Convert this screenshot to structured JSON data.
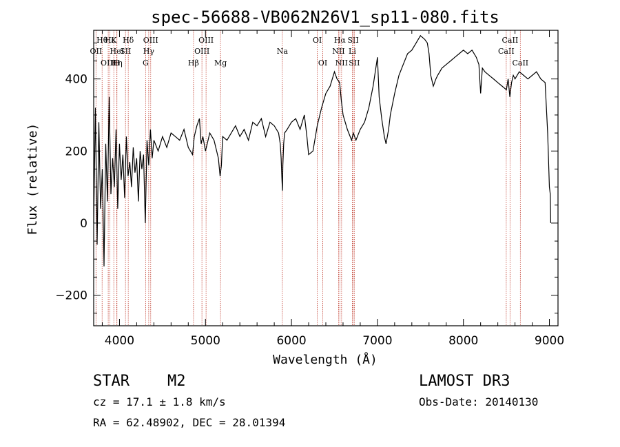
{
  "chart_data": {
    "type": "line",
    "title": "spec-56688-VB062N26V1_sp11-080.fits",
    "xlabel": "Wavelength (Å)",
    "ylabel": "Flux (relative)",
    "xlim": [
      3700,
      9100
    ],
    "ylim": [
      -285,
      535
    ],
    "x_ticks": [
      4000,
      5000,
      6000,
      7000,
      8000,
      9000
    ],
    "x_tick_labels": [
      "4000",
      "5000",
      "6000",
      "7000",
      "8000",
      "9000"
    ],
    "y_ticks": [
      -200,
      0,
      200,
      400
    ],
    "y_tick_labels": [
      "−200",
      "0",
      "200",
      "400"
    ],
    "series": [
      {
        "name": "flux",
        "x": [
          3700,
          3720,
          3740,
          3760,
          3780,
          3800,
          3820,
          3840,
          3860,
          3880,
          3900,
          3920,
          3940,
          3960,
          3980,
          4000,
          4020,
          4040,
          4060,
          4080,
          4100,
          4120,
          4140,
          4160,
          4180,
          4200,
          4220,
          4240,
          4260,
          4280,
          4300,
          4320,
          4340,
          4360,
          4380,
          4400,
          4450,
          4500,
          4550,
          4600,
          4650,
          4700,
          4750,
          4800,
          4850,
          4870,
          4900,
          4930,
          4950,
          4970,
          5000,
          5050,
          5100,
          5150,
          5170,
          5185,
          5200,
          5250,
          5300,
          5350,
          5400,
          5450,
          5500,
          5550,
          5600,
          5650,
          5700,
          5750,
          5800,
          5850,
          5870,
          5880,
          5890,
          5895,
          5900,
          5910,
          5920,
          5950,
          6000,
          6050,
          6100,
          6150,
          6180,
          6200,
          6250,
          6300,
          6350,
          6400,
          6450,
          6500,
          6530,
          6560,
          6580,
          6600,
          6650,
          6700,
          6720,
          6750,
          6800,
          6850,
          6900,
          6950,
          7000,
          7020,
          7050,
          7080,
          7100,
          7130,
          7150,
          7200,
          7250,
          7300,
          7350,
          7400,
          7450,
          7500,
          7550,
          7580,
          7600,
          7620,
          7650,
          7680,
          7700,
          7750,
          7800,
          7850,
          7900,
          7950,
          8000,
          8050,
          8100,
          8150,
          8180,
          8200,
          8220,
          8250,
          8300,
          8350,
          8400,
          8450,
          8500,
          8520,
          8540,
          8560,
          8580,
          8600,
          8650,
          8700,
          8750,
          8800,
          8850,
          8900,
          8950,
          8980,
          9000,
          9010,
          9015
        ],
        "values": [
          0,
          320,
          -60,
          280,
          40,
          150,
          -120,
          220,
          60,
          350,
          80,
          180,
          100,
          260,
          40,
          220,
          120,
          190,
          70,
          240,
          130,
          170,
          100,
          210,
          140,
          180,
          60,
          200,
          150,
          190,
          0,
          230,
          160,
          260,
          180,
          230,
          200,
          240,
          210,
          250,
          240,
          230,
          260,
          210,
          190,
          240,
          270,
          290,
          220,
          240,
          200,
          250,
          230,
          180,
          130,
          160,
          240,
          230,
          250,
          270,
          240,
          260,
          230,
          280,
          270,
          290,
          240,
          280,
          270,
          250,
          220,
          180,
          120,
          90,
          160,
          220,
          250,
          260,
          280,
          290,
          260,
          300,
          240,
          190,
          200,
          270,
          320,
          360,
          380,
          420,
          400,
          390,
          340,
          300,
          260,
          230,
          250,
          230,
          260,
          280,
          320,
          380,
          460,
          350,
          290,
          240,
          220,
          260,
          300,
          360,
          410,
          440,
          470,
          480,
          500,
          520,
          510,
          500,
          470,
          410,
          380,
          400,
          410,
          430,
          440,
          450,
          460,
          470,
          480,
          470,
          480,
          460,
          440,
          360,
          430,
          420,
          410,
          400,
          390,
          380,
          370,
          400,
          350,
          390,
          410,
          400,
          420,
          410,
          400,
          410,
          420,
          400,
          390,
          250,
          100,
          80,
          0
        ]
      }
    ],
    "lines": [
      {
        "name": "OII",
        "wavelength": 3727,
        "row": 2
      },
      {
        "name": "Hθ",
        "wavelength": 3798,
        "row": 1
      },
      {
        "name": "OIII",
        "wavelength": 3869,
        "row": 3
      },
      {
        "name": "Hε",
        "wavelength": 3889,
        "row": 1
      },
      {
        "name": "K",
        "wavelength": 3934,
        "row": 1
      },
      {
        "name": "HeI",
        "wavelength": 3970,
        "row": 2
      },
      {
        "name": "Hη",
        "wavelength": 3970,
        "row": 3
      },
      {
        "name": "H",
        "wavelength": 3968,
        "row": 3
      },
      {
        "name": "SII",
        "wavelength": 4070,
        "row": 2
      },
      {
        "name": "Hδ",
        "wavelength": 4102,
        "row": 1
      },
      {
        "name": "OIII",
        "wavelength": 4363,
        "row": 1
      },
      {
        "name": "Hγ",
        "wavelength": 4340,
        "row": 2
      },
      {
        "name": "G",
        "wavelength": 4304,
        "row": 3
      },
      {
        "name": "Hβ",
        "wavelength": 4861,
        "row": 3
      },
      {
        "name": "OIII",
        "wavelength": 4959,
        "row": 2
      },
      {
        "name": "OIII",
        "wavelength": 5007,
        "row": 1
      },
      {
        "name": "Mg",
        "wavelength": 5175,
        "row": 3
      },
      {
        "name": "Na",
        "wavelength": 5894,
        "row": 2
      },
      {
        "name": "OI",
        "wavelength": 6300,
        "row": 1
      },
      {
        "name": "OI",
        "wavelength": 6364,
        "row": 3
      },
      {
        "name": "Hα",
        "wavelength": 6563,
        "row": 1
      },
      {
        "name": "NII",
        "wavelength": 6548,
        "row": 2
      },
      {
        "name": "NII",
        "wavelength": 6583,
        "row": 3
      },
      {
        "name": "SII",
        "wavelength": 6717,
        "row": 1
      },
      {
        "name": "Li",
        "wavelength": 6708,
        "row": 2
      },
      {
        "name": "SII",
        "wavelength": 6731,
        "row": 3
      },
      {
        "name": "CaII",
        "wavelength": 8498,
        "row": 2
      },
      {
        "name": "CaII",
        "wavelength": 8542,
        "row": 1
      },
      {
        "name": "CaII",
        "wavelength": 8662,
        "row": 3
      }
    ],
    "colors": {
      "spectrum": "#000000",
      "lines": "#c0392b",
      "axes": "#000000"
    },
    "grid": false
  },
  "info": {
    "type": "STAR",
    "subclass": "M2",
    "survey": "LAMOST DR3",
    "cz": "cz = 17.1 ± 1.8 km/s",
    "obs_date": "Obs-Date: 20140130",
    "radec": "RA =  62.48902, DEC =  28.01394"
  }
}
